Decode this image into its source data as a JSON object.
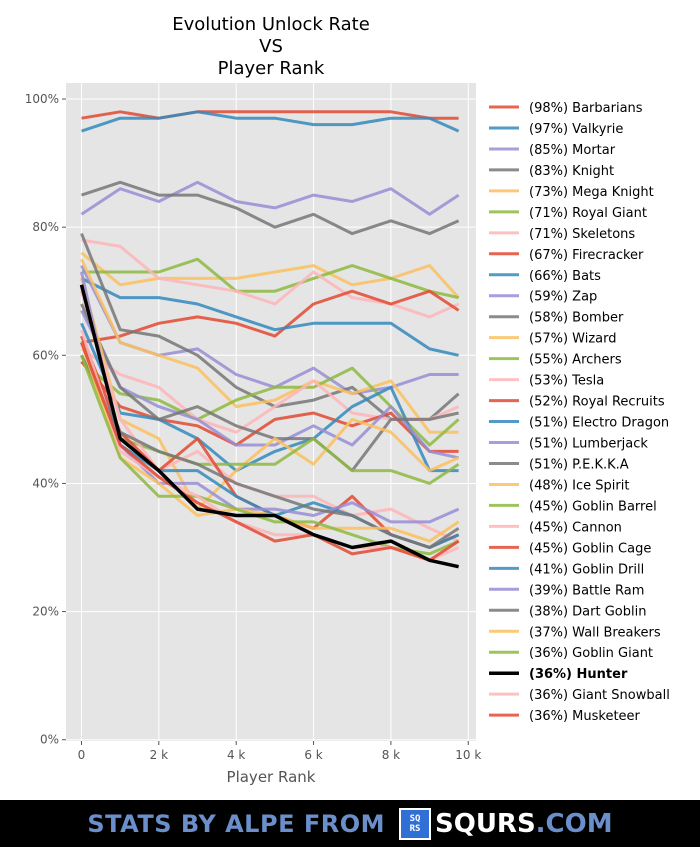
{
  "chart_data": {
    "type": "line",
    "title": [
      "Evolution Unlock Rate",
      "VS",
      "Player Rank"
    ],
    "xlabel": "Player Rank",
    "ylabel": "",
    "xlim": [
      -400,
      10200
    ],
    "ylim": [
      -0.2,
      102.5
    ],
    "x_ticks": [
      0,
      2000,
      4000,
      6000,
      8000,
      10000
    ],
    "x_tick_labels": [
      "0",
      "2 k",
      "4 k",
      "6 k",
      "8 k",
      "10 k"
    ],
    "y_ticks": [
      0,
      20,
      40,
      60,
      80,
      100
    ],
    "y_tick_labels": [
      "0%",
      "20%",
      "40%",
      "60%",
      "80%",
      "100%"
    ],
    "grid": true,
    "legend_position": "right-outside",
    "background": "#E5E5E5",
    "x": [
      0,
      1000,
      2000,
      3000,
      4000,
      5000,
      6000,
      7000,
      8000,
      9000,
      9750
    ],
    "series": [
      {
        "name": "(98%) Barbarians",
        "color": "#E24A33",
        "values": [
          97,
          98,
          97,
          98,
          98,
          98,
          98,
          98,
          98,
          97,
          97
        ]
      },
      {
        "name": "(97%) Valkyrie",
        "color": "#348ABD",
        "values": [
          95,
          97,
          97,
          98,
          97,
          97,
          96,
          96,
          97,
          97,
          95
        ]
      },
      {
        "name": "(85%) Mortar",
        "color": "#988ED5",
        "values": [
          82,
          86,
          84,
          87,
          84,
          83,
          85,
          84,
          86,
          82,
          85
        ]
      },
      {
        "name": "(83%) Knight",
        "color": "#777777",
        "values": [
          85,
          87,
          85,
          85,
          83,
          80,
          82,
          79,
          81,
          79,
          81
        ]
      },
      {
        "name": "(73%) Mega Knight",
        "color": "#FBC15E",
        "values": [
          76,
          71,
          72,
          72,
          72,
          73,
          74,
          71,
          72,
          74,
          69
        ]
      },
      {
        "name": "(71%) Royal Giant",
        "color": "#8EBA42",
        "values": [
          73,
          73,
          73,
          75,
          70,
          70,
          72,
          74,
          72,
          70,
          69
        ]
      },
      {
        "name": "(71%) Skeletons",
        "color": "#FFB5B8",
        "values": [
          78,
          77,
          72,
          71,
          70,
          68,
          73,
          69,
          68,
          66,
          68
        ]
      },
      {
        "name": "(67%) Firecracker",
        "color": "#E24A33",
        "values": [
          62,
          63,
          65,
          66,
          65,
          63,
          68,
          70,
          68,
          70,
          67
        ]
      },
      {
        "name": "(66%) Bats",
        "color": "#348ABD",
        "values": [
          72,
          69,
          69,
          68,
          66,
          64,
          65,
          65,
          65,
          61,
          60
        ]
      },
      {
        "name": "(59%) Zap",
        "color": "#988ED5",
        "values": [
          74,
          62,
          60,
          61,
          57,
          55,
          58,
          54,
          55,
          57,
          57
        ]
      },
      {
        "name": "(58%) Bomber",
        "color": "#777777",
        "values": [
          79,
          64,
          63,
          60,
          55,
          52,
          53,
          55,
          50,
          50,
          54
        ]
      },
      {
        "name": "(57%) Wizard",
        "color": "#FBC15E",
        "values": [
          75,
          62,
          60,
          58,
          52,
          53,
          56,
          54,
          56,
          48,
          48
        ]
      },
      {
        "name": "(55%) Archers",
        "color": "#8EBA42",
        "values": [
          59,
          54,
          53,
          50,
          53,
          55,
          55,
          58,
          52,
          46,
          50
        ]
      },
      {
        "name": "(53%) Tesla",
        "color": "#FFB5B8",
        "values": [
          61,
          57,
          55,
          50,
          48,
          52,
          56,
          51,
          50,
          50,
          52
        ]
      },
      {
        "name": "(52%) Royal Recruits",
        "color": "#E24A33",
        "values": [
          59,
          52,
          50,
          49,
          46,
          50,
          51,
          49,
          51,
          45,
          45
        ]
      },
      {
        "name": "(51%) Electro Dragon",
        "color": "#348ABD",
        "values": [
          65,
          51,
          50,
          47,
          42,
          45,
          47,
          52,
          55,
          42,
          42
        ]
      },
      {
        "name": "(51%) Lumberjack",
        "color": "#988ED5",
        "values": [
          67,
          55,
          52,
          50,
          46,
          46,
          49,
          46,
          52,
          45,
          44
        ]
      },
      {
        "name": "(51%) P.E.K.K.A",
        "color": "#777777",
        "values": [
          68,
          55,
          50,
          52,
          49,
          47,
          47,
          42,
          50,
          50,
          51
        ]
      },
      {
        "name": "(48%) Ice Spirit",
        "color": "#FBC15E",
        "values": [
          72,
          50,
          47,
          36,
          42,
          47,
          43,
          50,
          48,
          42,
          44
        ]
      },
      {
        "name": "(45%) Goblin Barrel",
        "color": "#8EBA42",
        "values": [
          60,
          47,
          45,
          43,
          43,
          43,
          47,
          42,
          42,
          40,
          43
        ]
      },
      {
        "name": "(45%) Cannon",
        "color": "#FFB5B8",
        "values": [
          70,
          50,
          42,
          45,
          40,
          38,
          38,
          35,
          36,
          33,
          31
        ]
      },
      {
        "name": "(45%) Goblin Cage",
        "color": "#E24A33",
        "values": [
          63,
          48,
          42,
          47,
          38,
          35,
          33,
          38,
          32,
          30,
          32
        ]
      },
      {
        "name": "(41%) Goblin Drill",
        "color": "#348ABD",
        "values": [
          62,
          46,
          42,
          42,
          38,
          35,
          37,
          35,
          32,
          30,
          32
        ]
      },
      {
        "name": "(39%) Battle Ram",
        "color": "#988ED5",
        "values": [
          73,
          46,
          40,
          40,
          36,
          36,
          35,
          37,
          34,
          34,
          36
        ]
      },
      {
        "name": "(38%) Dart Goblin",
        "color": "#777777",
        "values": [
          60,
          48,
          45,
          43,
          40,
          38,
          36,
          35,
          32,
          30,
          33
        ]
      },
      {
        "name": "(37%) Wall Breakers",
        "color": "#FBC15E",
        "values": [
          62,
          44,
          40,
          35,
          36,
          35,
          33,
          33,
          33,
          31,
          34
        ]
      },
      {
        "name": "(36%) Goblin Giant",
        "color": "#8EBA42",
        "values": [
          60,
          44,
          38,
          38,
          36,
          34,
          34,
          32,
          30,
          29,
          31
        ]
      },
      {
        "name": "(36%) Hunter",
        "color": "#000000",
        "highlight": true,
        "values": [
          71,
          47,
          42,
          36,
          35,
          35,
          32,
          30,
          31,
          28,
          27
        ]
      },
      {
        "name": "(36%) Giant Snowball",
        "color": "#FFB5B8",
        "values": [
          64,
          45,
          41,
          38,
          34,
          32,
          32,
          30,
          30,
          28,
          30
        ]
      },
      {
        "name": "(36%) Musketeer",
        "color": "#E24A33",
        "values": [
          62,
          46,
          41,
          37,
          34,
          31,
          32,
          29,
          30,
          28,
          31
        ]
      }
    ]
  },
  "footer": {
    "text": "STATS BY ALPE FROM",
    "logo_line1": "SQ",
    "logo_line2": "RS",
    "brand": "SQURS",
    "domain": ".COM"
  }
}
